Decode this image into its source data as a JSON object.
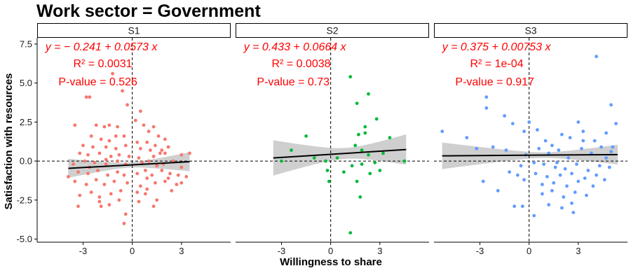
{
  "chart_data": {
    "type": "scatter",
    "title": "Work sector = Government",
    "xlabel": "Willingness to share",
    "ylabel": "Satisfaction with resources",
    "xlim": [
      -5.8,
      6.0
    ],
    "ylim": [
      -5.2,
      7.9
    ],
    "x_ticks": [
      -3,
      0,
      3
    ],
    "x_tick_labels": [
      "-3",
      "0",
      "3"
    ],
    "y_ticks": [
      -5,
      -2.5,
      0,
      2.5,
      5,
      7.5
    ],
    "y_tick_labels": [
      "-5.0",
      "-2.5",
      "0.0",
      "2.5",
      "5.0",
      "7.5"
    ],
    "reference_lines": {
      "x": 0,
      "y": 0,
      "style": "dashed"
    },
    "grid": false,
    "facets": [
      {
        "label": "S1",
        "color": "#F8766D",
        "equation": "y = − 0.241 + 0.0573 x",
        "r2": "R² = 0.0031",
        "pvalue": "P-value = 0.526",
        "fit": {
          "intercept": -0.241,
          "slope": 0.0573,
          "x_range": [
            -3.9,
            3.5
          ]
        },
        "band_halfwidth": {
          "center": -0.2,
          "min": 0.17,
          "curv": 0.025
        },
        "points": [
          [
            -2.8,
            4.1
          ],
          [
            -2.6,
            4.1
          ],
          [
            -1.2,
            5.6
          ],
          [
            -0.6,
            4.5
          ],
          [
            -0.3,
            3.6
          ],
          [
            0.5,
            3.2
          ],
          [
            -3.5,
            2.3
          ],
          [
            -2.2,
            2.3
          ],
          [
            -1.7,
            2.2
          ],
          [
            -1.4,
            2.3
          ],
          [
            -0.9,
            2.2
          ],
          [
            0.2,
            2.6
          ],
          [
            0.7,
            2.3
          ],
          [
            1.0,
            1.9
          ],
          [
            1.3,
            2.2
          ],
          [
            1.6,
            1.6
          ],
          [
            -2.5,
            1.6
          ],
          [
            -1.9,
            1.4
          ],
          [
            -1.4,
            1.3
          ],
          [
            -1.0,
            1.6
          ],
          [
            -0.5,
            1.6
          ],
          [
            0.3,
            1.2
          ],
          [
            0.9,
            1.2
          ],
          [
            1.4,
            1.0
          ],
          [
            2.0,
            1.4
          ],
          [
            -3.0,
            1.0
          ],
          [
            -2.4,
            0.9
          ],
          [
            -1.6,
            0.9
          ],
          [
            -1.0,
            0.8
          ],
          [
            -0.4,
            1.0
          ],
          [
            0.5,
            0.8
          ],
          [
            1.1,
            0.7
          ],
          [
            1.8,
            0.7
          ],
          [
            2.2,
            0.9
          ],
          [
            3.5,
            0.5
          ],
          [
            -3.2,
            0.5
          ],
          [
            -2.7,
            0.4
          ],
          [
            -2.0,
            0.5
          ],
          [
            -1.3,
            0.3
          ],
          [
            -0.8,
            0.4
          ],
          [
            -0.2,
            0.3
          ],
          [
            0.4,
            0.2
          ],
          [
            1.3,
            0.3
          ],
          [
            1.7,
            0.5
          ],
          [
            2.0,
            0.5
          ],
          [
            3.0,
            0.4
          ],
          [
            -3.6,
            -0.2
          ],
          [
            -2.9,
            0.0
          ],
          [
            -2.3,
            -0.1
          ],
          [
            -1.6,
            -0.2
          ],
          [
            -0.9,
            0.0
          ],
          [
            -0.4,
            -0.2
          ],
          [
            0.6,
            -0.1
          ],
          [
            1.0,
            0.0
          ],
          [
            1.5,
            -0.3
          ],
          [
            2.5,
            0.0
          ],
          [
            3.0,
            -0.4
          ],
          [
            -3.9,
            -1.0
          ],
          [
            -3.3,
            -0.7
          ],
          [
            -2.7,
            -0.8
          ],
          [
            -2.1,
            -0.6
          ],
          [
            -1.5,
            -0.9
          ],
          [
            -0.9,
            -0.7
          ],
          [
            -0.5,
            -0.9
          ],
          [
            0.3,
            -0.8
          ],
          [
            0.8,
            -0.6
          ],
          [
            1.2,
            -0.9
          ],
          [
            1.8,
            -0.6
          ],
          [
            2.3,
            -0.8
          ],
          [
            2.8,
            -0.9
          ],
          [
            3.3,
            -1.0
          ],
          [
            -3.5,
            -1.3
          ],
          [
            -2.8,
            -1.5
          ],
          [
            -2.2,
            -1.2
          ],
          [
            -1.7,
            -1.5
          ],
          [
            -1.1,
            -1.3
          ],
          [
            -0.3,
            -1.4
          ],
          [
            0.5,
            -1.6
          ],
          [
            0.9,
            -1.8
          ],
          [
            1.4,
            -1.4
          ],
          [
            2.0,
            -1.3
          ],
          [
            2.7,
            -1.5
          ],
          [
            3.0,
            -1.4
          ],
          [
            -3.2,
            -2.2
          ],
          [
            -2.5,
            -2.0
          ],
          [
            -2.0,
            -2.3
          ],
          [
            -1.3,
            -2.1
          ],
          [
            -0.7,
            -1.9
          ],
          [
            0.3,
            -2.0
          ],
          [
            0.8,
            -2.1
          ],
          [
            1.5,
            -2.5
          ],
          [
            2.4,
            -1.9
          ],
          [
            -3.3,
            -2.9
          ],
          [
            -2.0,
            -2.6
          ],
          [
            -1.4,
            -2.8
          ],
          [
            -0.8,
            -2.5
          ],
          [
            0.4,
            -2.6
          ],
          [
            1.3,
            -2.9
          ],
          [
            -0.4,
            -3.4
          ],
          [
            -0.5,
            -4.0
          ],
          [
            -1.6,
            0.1
          ],
          [
            -2.6,
            -0.4
          ],
          [
            0.9,
            -1.1
          ],
          [
            1.9,
            -0.2
          ],
          [
            -1.9,
            -2.9
          ],
          [
            2.2,
            -1.1
          ]
        ]
      },
      {
        "label": "S2",
        "color": "#00BA38",
        "equation": "y = 0.433 + 0.0664 x",
        "r2": "R² = 0.0038",
        "pvalue": "P-value = 0.73",
        "fit": {
          "intercept": 0.433,
          "slope": 0.0664,
          "x_range": [
            -3.5,
            4.6
          ]
        },
        "band_halfwidth": {
          "center": 0.9,
          "min": 0.35,
          "curv": 0.06
        },
        "points": [
          [
            1.2,
            5.4
          ],
          [
            2.3,
            4.3
          ],
          [
            1.6,
            3.7
          ],
          [
            2.8,
            2.7
          ],
          [
            2.1,
            2.2
          ],
          [
            -1.5,
            1.6
          ],
          [
            1.7,
            1.7
          ],
          [
            2.1,
            1.8
          ],
          [
            -2.4,
            0.7
          ],
          [
            1.5,
            1.0
          ],
          [
            1.9,
            0.7
          ],
          [
            3.6,
            1.5
          ],
          [
            -1.0,
            0.2
          ],
          [
            0.4,
            0.2
          ],
          [
            2.3,
            0.4
          ],
          [
            3.2,
            0.5
          ],
          [
            -3.0,
            0.0
          ],
          [
            -0.3,
            0.0
          ],
          [
            1.3,
            -0.3
          ],
          [
            1.9,
            -0.2
          ],
          [
            2.7,
            -0.1
          ],
          [
            4.5,
            0.0
          ],
          [
            -0.2,
            -0.6
          ],
          [
            0.8,
            -0.7
          ],
          [
            2.4,
            -0.8
          ],
          [
            3.0,
            -0.6
          ],
          [
            1.6,
            -1.3
          ],
          [
            -0.1,
            -1.3
          ],
          [
            1.8,
            -2.3
          ],
          [
            1.2,
            -4.6
          ]
        ]
      },
      {
        "label": "S3",
        "color": "#619CFF",
        "equation": "y = 0.375 + 0.00753 x",
        "r2": "R² = 1e-04",
        "pvalue": "P-value = 0.917",
        "fit": {
          "intercept": 0.375,
          "slope": 0.00753,
          "x_range": [
            -5.3,
            5.4
          ]
        },
        "band_halfwidth": {
          "center": 0.9,
          "min": 0.18,
          "curv": 0.018
        },
        "points": [
          [
            4.1,
            6.7
          ],
          [
            -2.6,
            4.1
          ],
          [
            -2.6,
            3.4
          ],
          [
            -1.5,
            2.9
          ],
          [
            -5.3,
            1.9
          ],
          [
            -3.8,
            1.5
          ],
          [
            -1.0,
            2.4
          ],
          [
            5.0,
            3.6
          ],
          [
            5.3,
            2.4
          ],
          [
            3.0,
            2.5
          ],
          [
            -3.2,
            0.8
          ],
          [
            -1.4,
            0.7
          ],
          [
            -0.3,
            1.9
          ],
          [
            0.5,
            2.0
          ],
          [
            1.0,
            1.3
          ],
          [
            1.4,
            1.0
          ],
          [
            2.0,
            1.7
          ],
          [
            2.5,
            1.5
          ],
          [
            3.3,
            1.9
          ],
          [
            4.0,
            1.3
          ],
          [
            4.7,
            1.8
          ],
          [
            5.1,
            0.9
          ],
          [
            -2.2,
            0.9
          ],
          [
            -0.2,
            0.4
          ],
          [
            0.6,
            0.8
          ],
          [
            1.2,
            0.5
          ],
          [
            1.8,
            0.7
          ],
          [
            2.4,
            0.2
          ],
          [
            3.2,
            0.8
          ],
          [
            3.8,
            0.5
          ],
          [
            4.4,
            0.9
          ],
          [
            5.0,
            0.6
          ],
          [
            -0.5,
            -0.3
          ],
          [
            0.3,
            -0.1
          ],
          [
            0.9,
            -0.2
          ],
          [
            1.6,
            -0.4
          ],
          [
            2.2,
            -0.5
          ],
          [
            2.9,
            -0.2
          ],
          [
            3.6,
            -0.6
          ],
          [
            4.3,
            -0.3
          ],
          [
            4.9,
            -0.4
          ],
          [
            -0.7,
            -0.9
          ],
          [
            0.4,
            -0.8
          ],
          [
            1.1,
            -1.0
          ],
          [
            1.9,
            -0.9
          ],
          [
            2.6,
            -0.8
          ],
          [
            3.4,
            -1.1
          ],
          [
            4.1,
            -0.9
          ],
          [
            -2.8,
            -1.3
          ],
          [
            -0.3,
            -1.2
          ],
          [
            0.8,
            -1.5
          ],
          [
            1.5,
            -1.4
          ],
          [
            2.3,
            -1.6
          ],
          [
            3.0,
            -1.3
          ],
          [
            3.9,
            -1.6
          ],
          [
            4.6,
            -1.2
          ],
          [
            0.8,
            -2.1
          ],
          [
            1.4,
            -1.9
          ],
          [
            2.1,
            -2.3
          ],
          [
            2.8,
            -2.0
          ],
          [
            3.5,
            -2.2
          ],
          [
            -0.9,
            -2.9
          ],
          [
            -0.4,
            -2.9
          ],
          [
            1.2,
            -2.8
          ],
          [
            2.6,
            -2.7
          ],
          [
            0.3,
            -3.5
          ],
          [
            2.7,
            -3.3
          ],
          [
            2.0,
            -3.0
          ],
          [
            -1.9,
            -1.9
          ],
          [
            1.7,
            -0.1
          ],
          [
            4.7,
            0.2
          ],
          [
            3.3,
            1.3
          ],
          [
            0.0,
            2.5
          ],
          [
            -1.2,
            -0.7
          ]
        ]
      }
    ]
  }
}
